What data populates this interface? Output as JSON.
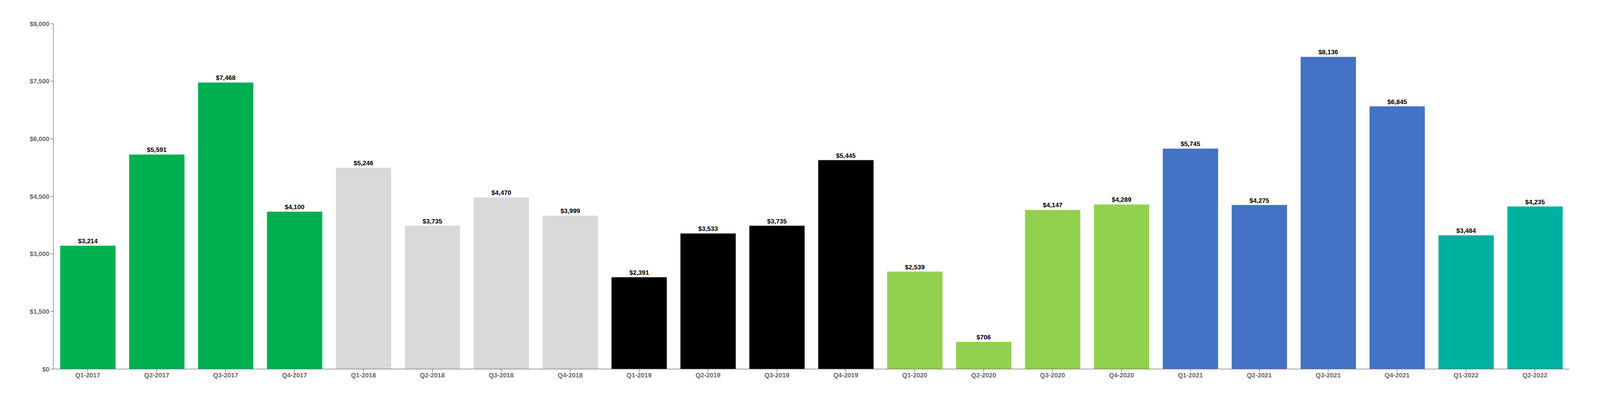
{
  "chart_data": {
    "type": "bar",
    "categories": [
      "Q1-2017",
      "Q2-2017",
      "Q3-2017",
      "Q4-2017",
      "Q1-2018",
      "Q2-2018",
      "Q3-2018",
      "Q4-2018",
      "Q1-2019",
      "Q2-2019",
      "Q3-2019",
      "Q4-2019",
      "Q1-2020",
      "Q2-2020",
      "Q3-2020",
      "Q4-2020",
      "Q1-2021",
      "Q2-2021",
      "Q3-2021",
      "Q4-2021",
      "Q1-2022",
      "Q2-2022"
    ],
    "values": [
      3214,
      5591,
      7468,
      4100,
      5246,
      3735,
      4470,
      3999,
      2391,
      3533,
      3735,
      5445,
      2539,
      706,
      4147,
      4289,
      5745,
      4275,
      8136,
      6845,
      3484,
      4235
    ],
    "value_labels": [
      "$3,214",
      "$5,591",
      "$7,468",
      "$4,100",
      "$5,246",
      "$3,735",
      "$4,470",
      "$3,999",
      "$2,391",
      "$3,533",
      "$3,735",
      "$5,445",
      "$2,539",
      "$706",
      "$4,147",
      "$4,289",
      "$5,745",
      "$4,275",
      "$8,136",
      "$6,845",
      "$3,484",
      "$4,235"
    ],
    "colors": [
      "#00b050",
      "#00b050",
      "#00b050",
      "#00b050",
      "#d9d9d9",
      "#d9d9d9",
      "#d9d9d9",
      "#d9d9d9",
      "#000000",
      "#000000",
      "#000000",
      "#000000",
      "#92d050",
      "#92d050",
      "#92d050",
      "#92d050",
      "#4472c4",
      "#4472c4",
      "#4472c4",
      "#4472c4",
      "#00b0a0",
      "#00b0a0"
    ],
    "ylim": [
      0,
      9000
    ],
    "yticks": [
      {
        "value": 0,
        "label": "$0"
      },
      {
        "value": 1500,
        "label": "$1,500"
      },
      {
        "value": 3000,
        "label": "$3,000"
      },
      {
        "value": 4500,
        "label": "$4,500"
      },
      {
        "value": 6000,
        "label": "$6,000"
      },
      {
        "value": 7500,
        "label": "$7,500"
      },
      {
        "value": 9000,
        "label": "$9,000"
      }
    ],
    "grid": false,
    "data_labels": true
  }
}
